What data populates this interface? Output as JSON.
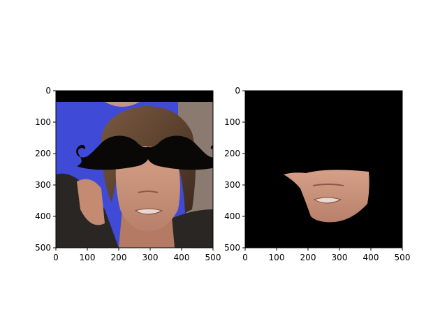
{
  "chart_data": [
    {
      "type": "image",
      "content": "photo of a man with a black mustache-shaped overlay covering his eyes",
      "xlim": [
        0,
        500
      ],
      "ylim": [
        500,
        0
      ],
      "xticks": [
        "0",
        "100",
        "200",
        "300",
        "400",
        "500"
      ],
      "yticks": [
        "0",
        "100",
        "200",
        "300",
        "400",
        "500"
      ],
      "mask_shape": "mustache",
      "mask_color": "#0a0707"
    },
    {
      "type": "image",
      "content": "segmented lower face region on black background",
      "xlim": [
        0,
        500
      ],
      "ylim": [
        500,
        0
      ],
      "xticks": [
        "0",
        "100",
        "200",
        "300",
        "400",
        "500"
      ],
      "yticks": [
        "0",
        "100",
        "200",
        "300",
        "400",
        "500"
      ],
      "background_color": "#000000"
    }
  ],
  "colors": {
    "backdrop_blue": "#3f4bd6",
    "hair": "#5a3e2a",
    "skin": "#c99278",
    "jacket": "#2a2624"
  }
}
